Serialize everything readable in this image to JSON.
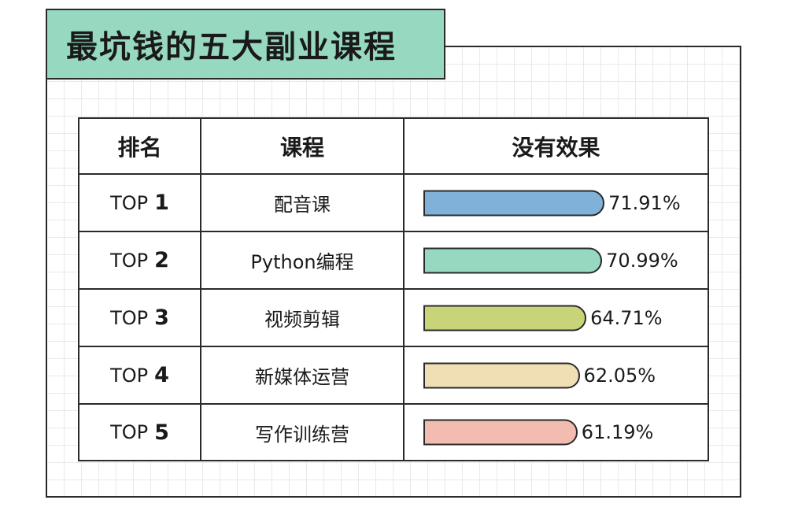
{
  "title": "最坑钱的五大副业课程",
  "table": {
    "headers": [
      "排名",
      "课程",
      "没有效果"
    ],
    "rows": [
      {
        "rank_prefix": "TOP",
        "rank_num": "1",
        "course": "配音课",
        "value_label": "71.91%"
      },
      {
        "rank_prefix": "TOP",
        "rank_num": "2",
        "course": "Python编程",
        "value_label": "70.99%"
      },
      {
        "rank_prefix": "TOP",
        "rank_num": "3",
        "course": "视频剪辑",
        "value_label": "64.71%"
      },
      {
        "rank_prefix": "TOP",
        "rank_num": "4",
        "course": "新媒体运营",
        "value_label": "62.05%"
      },
      {
        "rank_prefix": "TOP",
        "rank_num": "5",
        "course": "写作训练营",
        "value_label": "61.19%"
      }
    ]
  },
  "chart_data": {
    "type": "bar",
    "title": "最坑钱的五大副业课程",
    "categories": [
      "配音课",
      "Python编程",
      "视频剪辑",
      "新媒体运营",
      "写作训练营"
    ],
    "values": [
      71.91,
      70.99,
      64.71,
      62.05,
      61.19
    ],
    "unit": "%",
    "ylabel": "没有效果",
    "colors": [
      "#7fb1d9",
      "#97d9c0",
      "#c9d479",
      "#f0deb4",
      "#f2bcb0"
    ]
  }
}
